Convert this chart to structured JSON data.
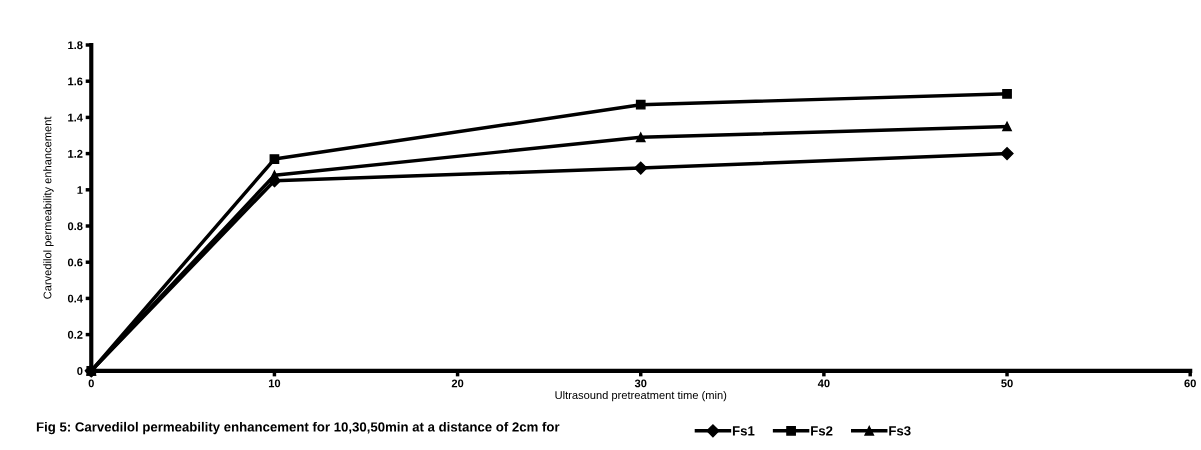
{
  "chart_data": {
    "type": "line",
    "xlabel": "Ultrasound pretreatment time (min)",
    "ylabel": "Carvedilol permeability enhancement",
    "annotations": [
      "Fig 5: Carvedilol permeability enhancement for 10,30,50min at a distance of 2cm for"
    ],
    "x": [
      0,
      10,
      30,
      50
    ],
    "series": [
      {
        "name": "Fs1",
        "color": "#000000",
        "marker": "diamond",
        "values": [
          0,
          1.05,
          1.12,
          1.2
        ]
      },
      {
        "name": "Fs2",
        "color": "#000000",
        "marker": "square",
        "values": [
          0,
          1.17,
          1.47,
          1.53
        ]
      },
      {
        "name": "Fs3",
        "color": "#000000",
        "marker": "triangle",
        "values": [
          0,
          1.08,
          1.29,
          1.35
        ]
      }
    ],
    "xlim": [
      0,
      60
    ],
    "xticks": [
      0,
      10,
      20,
      30,
      40,
      50,
      60
    ],
    "ylim": [
      0,
      1.8
    ],
    "yticks": [
      0,
      0.2,
      0.4,
      0.6,
      0.8,
      1,
      1.2,
      1.4,
      1.6,
      1.8
    ],
    "grid": false,
    "legend": "bottom",
    "line_style": "solid"
  }
}
